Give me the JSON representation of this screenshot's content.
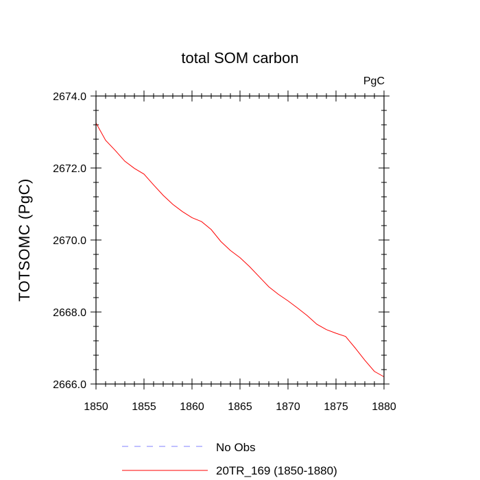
{
  "chart_data": {
    "type": "line",
    "title": "total SOM carbon",
    "units_label": "PgC",
    "ylabel": "TOTSOMC  (PgC)",
    "xlabel": "",
    "xlim": [
      1850,
      1880
    ],
    "ylim": [
      2666.0,
      2674.0
    ],
    "x_ticks": [
      1850,
      1855,
      1860,
      1865,
      1870,
      1875,
      1880
    ],
    "x_tick_labels": [
      "1850",
      "1855",
      "1860",
      "1865",
      "1870",
      "1875",
      "1880"
    ],
    "y_ticks": [
      2666.0,
      2668.0,
      2670.0,
      2672.0,
      2674.0
    ],
    "y_tick_labels": [
      "2666.0",
      "2668.0",
      "2670.0",
      "2672.0",
      "2674.0"
    ],
    "grid": false,
    "legend_position": "bottom",
    "series": [
      {
        "name": "No Obs",
        "style": "dashed",
        "color": "#8080ff",
        "x": [],
        "values": []
      },
      {
        "name": "20TR_169 (1850-1880)",
        "style": "solid",
        "color": "#ff0000",
        "x": [
          1850,
          1851,
          1852,
          1853,
          1854,
          1855,
          1856,
          1857,
          1858,
          1859,
          1860,
          1861,
          1862,
          1863,
          1864,
          1865,
          1866,
          1867,
          1868,
          1869,
          1870,
          1871,
          1872,
          1873,
          1874,
          1875,
          1876,
          1877,
          1878,
          1879,
          1880
        ],
        "values": [
          2673.25,
          2672.77,
          2672.49,
          2672.19,
          2671.99,
          2671.83,
          2671.53,
          2671.24,
          2670.99,
          2670.79,
          2670.62,
          2670.51,
          2670.29,
          2669.96,
          2669.71,
          2669.51,
          2669.26,
          2668.98,
          2668.7,
          2668.49,
          2668.31,
          2668.11,
          2667.9,
          2667.66,
          2667.51,
          2667.41,
          2667.32,
          2667.0,
          2666.66,
          2666.35,
          2666.2
        ]
      }
    ]
  }
}
